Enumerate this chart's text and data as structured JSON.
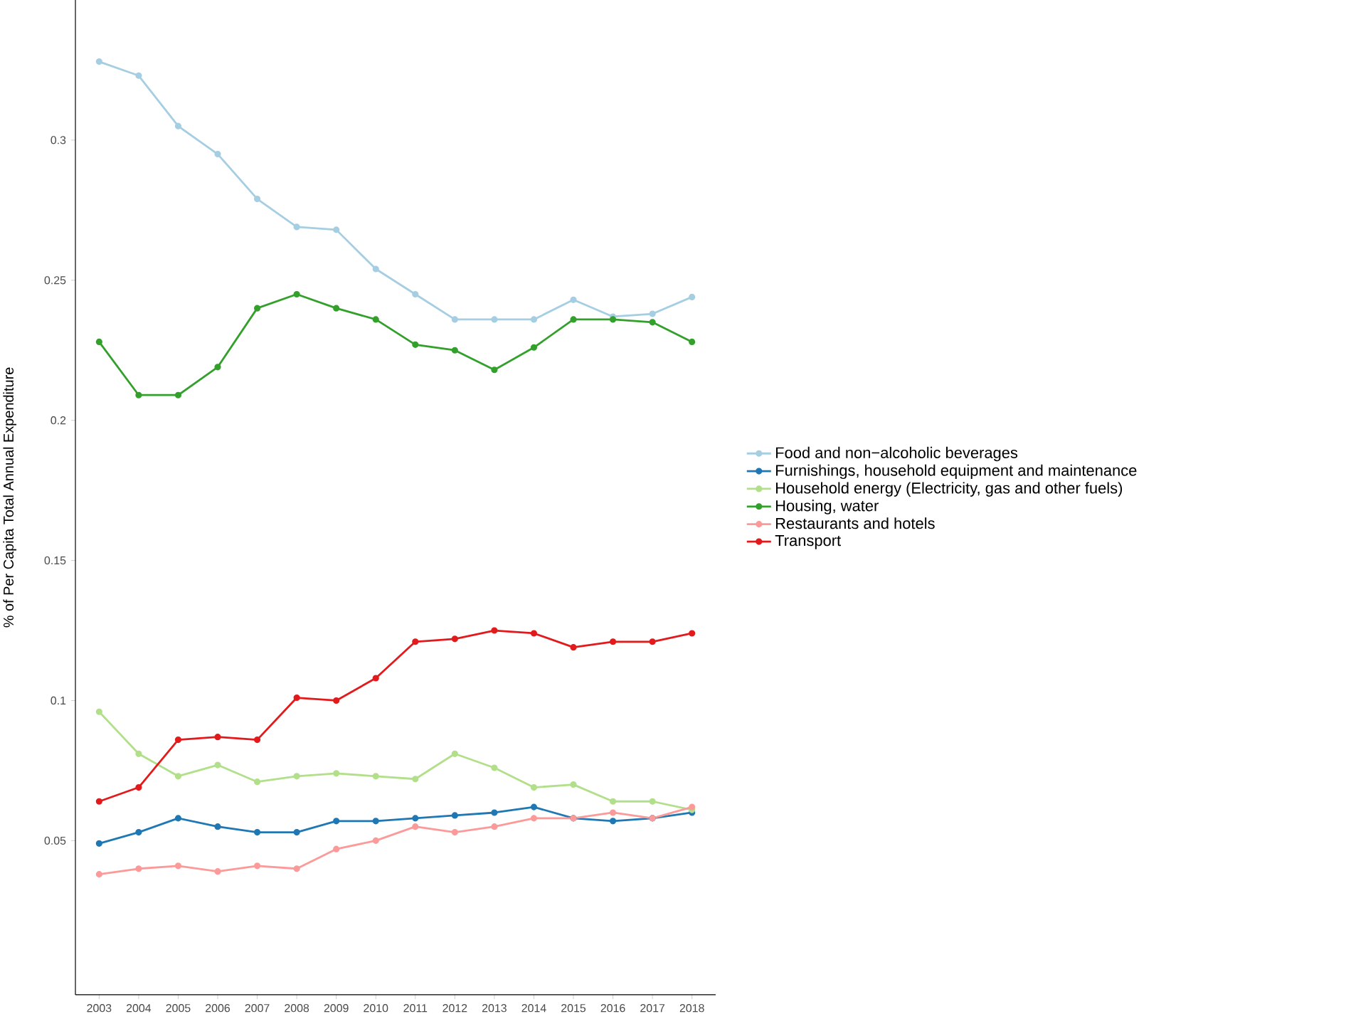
{
  "chart_data": {
    "type": "line",
    "ylabel": "% of Per Capita Total Annual Expenditure",
    "categories": [
      "2003",
      "2004",
      "2005",
      "2006",
      "2007",
      "2008",
      "2009",
      "2010",
      "2011",
      "2012",
      "2013",
      "2014",
      "2015",
      "2016",
      "2017",
      "2018"
    ],
    "ylim": [
      -0.005,
      0.35
    ],
    "yticks": [
      0.05,
      0.1,
      0.15,
      0.2,
      0.25,
      0.3
    ],
    "grid": false,
    "legend": "right",
    "marker": "circle",
    "line_style": "solid",
    "series": [
      {
        "name": "Food and non−alcoholic beverages",
        "color": "#a6cee3",
        "values": [
          0.328,
          0.323,
          0.305,
          0.295,
          0.279,
          0.269,
          0.268,
          0.254,
          0.245,
          0.236,
          0.236,
          0.236,
          0.243,
          0.237,
          0.238,
          0.244
        ]
      },
      {
        "name": "Furnishings, household equipment and maintenance",
        "color": "#1f78b4",
        "values": [
          0.049,
          0.053,
          0.058,
          0.055,
          0.053,
          0.053,
          0.057,
          0.057,
          0.058,
          0.059,
          0.06,
          0.062,
          0.058,
          0.057,
          0.058,
          0.06
        ]
      },
      {
        "name": "Household energy (Electricity, gas and other fuels)",
        "color": "#b2df8a",
        "values": [
          0.096,
          0.081,
          0.073,
          0.077,
          0.071,
          0.073,
          0.074,
          0.073,
          0.072,
          0.081,
          0.076,
          0.069,
          0.07,
          0.064,
          0.064,
          0.061
        ]
      },
      {
        "name": "Housing, water",
        "color": "#33a02c",
        "values": [
          0.228,
          0.209,
          0.209,
          0.219,
          0.24,
          0.245,
          0.24,
          0.236,
          0.227,
          0.225,
          0.218,
          0.226,
          0.236,
          0.236,
          0.235,
          0.228
        ]
      },
      {
        "name": "Restaurants and hotels",
        "color": "#fb9a99",
        "values": [
          0.038,
          0.04,
          0.041,
          0.039,
          0.041,
          0.04,
          0.047,
          0.05,
          0.055,
          0.053,
          0.055,
          0.058,
          0.058,
          0.06,
          0.058,
          0.062
        ]
      },
      {
        "name": "Transport",
        "color": "#e31a1c",
        "values": [
          0.064,
          0.069,
          0.086,
          0.087,
          0.086,
          0.101,
          0.1,
          0.108,
          0.121,
          0.122,
          0.125,
          0.124,
          0.119,
          0.121,
          0.121,
          0.124
        ]
      }
    ]
  }
}
